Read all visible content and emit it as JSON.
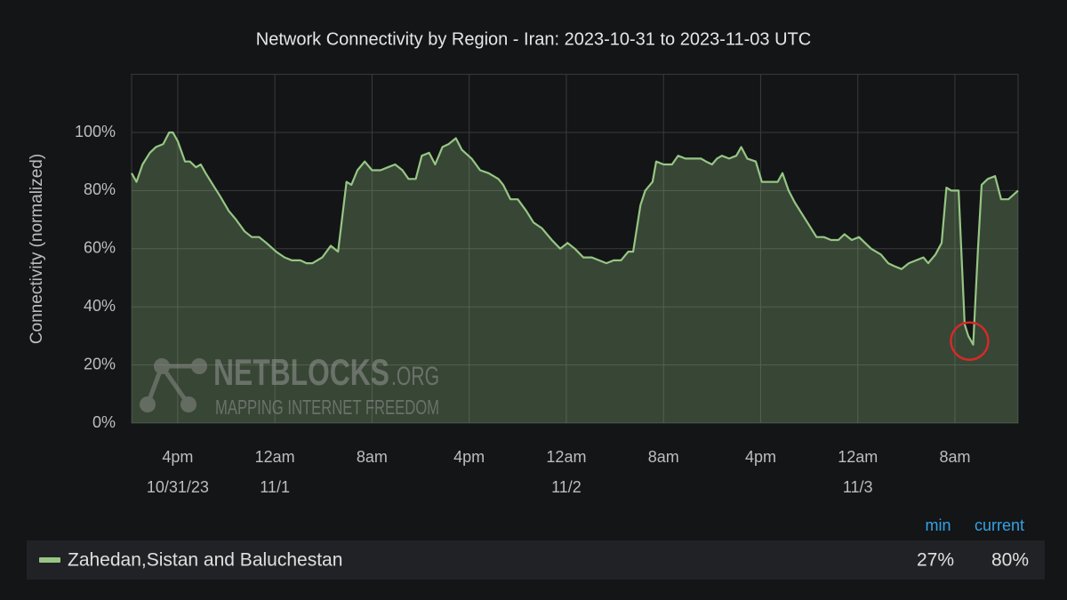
{
  "chart_data": {
    "type": "line",
    "title": "Network Connectivity by Region - Iran: 2023-10-31 to 2023-11-03 UTC",
    "y_label": "Connectivity (normalized)",
    "x_unit": "hours since 2023-10-31 00:00 UTC",
    "xlim": [
      12.2,
      85.2
    ],
    "xticks": [
      {
        "value": 16,
        "label": "4pm",
        "sublabel": "10/31/23"
      },
      {
        "value": 24,
        "label": "12am",
        "sublabel": "11/1"
      },
      {
        "value": 32,
        "label": "8am"
      },
      {
        "value": 40,
        "label": "4pm"
      },
      {
        "value": 48,
        "label": "12am",
        "sublabel": "11/2"
      },
      {
        "value": 56,
        "label": "8am"
      },
      {
        "value": 64,
        "label": "4pm"
      },
      {
        "value": 72,
        "label": "12am",
        "sublabel": "11/3"
      },
      {
        "value": 80,
        "label": "8am"
      }
    ],
    "ylim": [
      0,
      120
    ],
    "yticks": [
      {
        "value": 0,
        "label": "0%"
      },
      {
        "value": 20,
        "label": "20%"
      },
      {
        "value": 40,
        "label": "40%"
      },
      {
        "value": 60,
        "label": "60%"
      },
      {
        "value": 80,
        "label": "80%"
      },
      {
        "value": 100,
        "label": "100%"
      }
    ],
    "grid": true,
    "x": [
      12.2,
      12.6,
      13.1,
      13.7,
      14.2,
      14.8,
      15.3,
      15.6,
      16.0,
      16.6,
      17.0,
      17.5,
      17.9,
      18.3,
      18.9,
      19.5,
      20.2,
      20.8,
      21.5,
      22.1,
      22.7,
      23.3,
      24.1,
      24.8,
      25.4,
      26.1,
      26.6,
      27.1,
      27.9,
      28.6,
      29.2,
      29.9,
      30.3,
      30.8,
      31.4,
      32.0,
      32.7,
      33.3,
      33.9,
      34.5,
      35.0,
      35.6,
      36.1,
      36.7,
      37.2,
      37.8,
      38.3,
      38.9,
      39.4,
      40.2,
      40.9,
      41.6,
      42.4,
      42.8,
      43.4,
      44.0,
      44.7,
      45.3,
      46.0,
      46.8,
      47.5,
      48.1,
      48.7,
      49.4,
      50.1,
      50.7,
      51.3,
      51.9,
      52.5,
      53.1,
      53.5,
      54.1,
      54.5,
      55.1,
      55.4,
      56.0,
      56.7,
      57.2,
      57.8,
      58.5,
      59.1,
      59.5,
      60.0,
      60.4,
      60.8,
      61.4,
      62.0,
      62.4,
      62.9,
      63.6,
      64.1,
      64.8,
      65.4,
      65.8,
      66.3,
      66.8,
      67.4,
      68.0,
      68.6,
      69.2,
      69.8,
      70.4,
      70.9,
      71.5,
      72.1,
      72.6,
      73.1,
      73.9,
      74.5,
      75.0,
      75.6,
      76.2,
      76.8,
      77.4,
      77.8,
      78.4,
      78.9,
      79.3,
      79.7,
      80.2,
      80.3,
      80.8,
      81.1,
      81.5,
      81.9,
      82.2,
      82.7,
      83.3,
      83.8,
      84.4,
      85.2
    ],
    "series": [
      {
        "name": "Zahedan,Sistan and Baluchestan",
        "color": "#96c684",
        "values": [
          86,
          83,
          89,
          93,
          95,
          96,
          100,
          100,
          97,
          90,
          90,
          88,
          89,
          86,
          82,
          78,
          73,
          70,
          66,
          64,
          64,
          62,
          59,
          57,
          56,
          56,
          55,
          55,
          57,
          61,
          59,
          83,
          82,
          87,
          90,
          87,
          87,
          88,
          89,
          87,
          84,
          84,
          92,
          93,
          89,
          95,
          96,
          98,
          94,
          91,
          87,
          86,
          84,
          82,
          77,
          77,
          73,
          69,
          67,
          63,
          60,
          62,
          60,
          57,
          57,
          56,
          55,
          56,
          56,
          59,
          59,
          75,
          80,
          83,
          90,
          89,
          89,
          92,
          91,
          91,
          91,
          90,
          89,
          91,
          92,
          91,
          92,
          95,
          91,
          90,
          83,
          83,
          83,
          86,
          80,
          76,
          72,
          68,
          64,
          64,
          63,
          63,
          65,
          63,
          64,
          62,
          60,
          58,
          55,
          54,
          53,
          55,
          56,
          57,
          55,
          58,
          62,
          81,
          80,
          80,
          80,
          34,
          30,
          27,
          60,
          82,
          84,
          85,
          77,
          77,
          80
        ]
      }
    ],
    "legend_stats": [
      {
        "name": "min",
        "value": 27,
        "label": "27%"
      },
      {
        "name": "current",
        "value": 80,
        "label": "80%"
      }
    ],
    "watermark": {
      "brand": "NETBLOCKS",
      "domain": ".ORG",
      "tagline": "MAPPING INTERNET FREEDOM"
    }
  }
}
